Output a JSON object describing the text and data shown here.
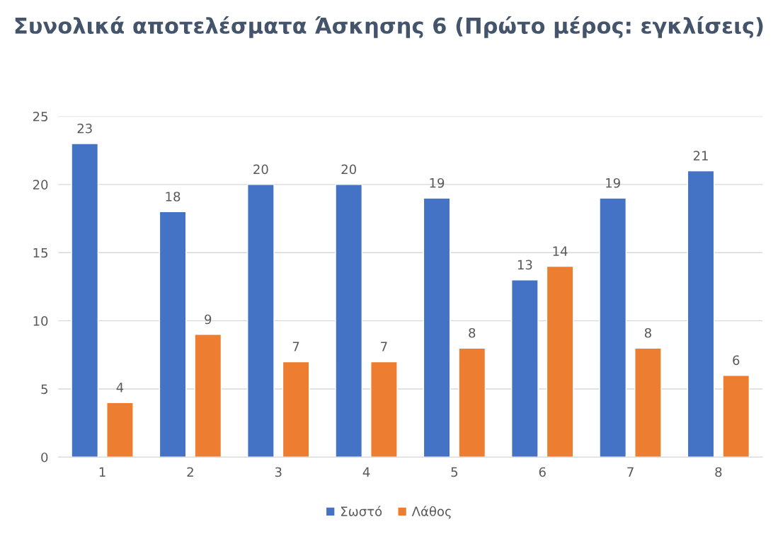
{
  "chart_data": {
    "type": "bar",
    "title": "Συνολικά αποτελέσματα Άσκησης 6 (Πρώτο μέρος: εγκλίσεις)",
    "categories": [
      "1",
      "2",
      "3",
      "4",
      "5",
      "6",
      "7",
      "8"
    ],
    "series": [
      {
        "name": "Σωστό",
        "color": "#4472c4",
        "values": [
          23,
          18,
          20,
          20,
          19,
          13,
          19,
          21
        ]
      },
      {
        "name": "Λάθος",
        "color": "#ed7d31",
        "values": [
          4,
          9,
          7,
          7,
          8,
          14,
          8,
          6
        ]
      }
    ],
    "ylim": [
      0,
      25
    ],
    "yticks": [
      0,
      5,
      10,
      15,
      20,
      25
    ],
    "grid": "y",
    "legend": "bottom",
    "data_labels": true
  }
}
